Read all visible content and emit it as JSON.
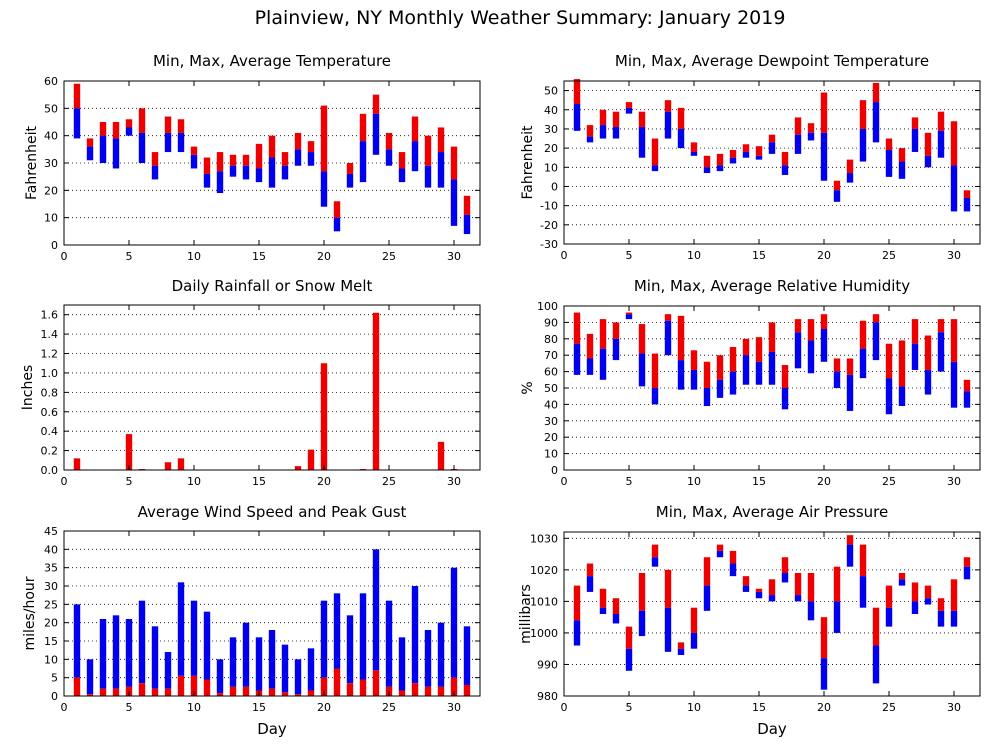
{
  "figure_title": "Plainview, NY Monthly Weather Summary: January 2019",
  "colors": {
    "red": "#ee0000",
    "blue": "#0000ee",
    "grid": "#000000"
  },
  "chart_data": [
    {
      "id": "temp",
      "type": "bar",
      "style": "floating-range",
      "title": "Min, Max, Average Temperature",
      "ylabel": "Fahrenheit",
      "xlabel": "",
      "xlim": [
        0,
        32
      ],
      "xticks": [
        0,
        5,
        10,
        15,
        20,
        25,
        30
      ],
      "ylim": [
        0,
        60
      ],
      "yticks": [
        0,
        10,
        20,
        30,
        40,
        50,
        60
      ],
      "grid": "horizontal-dotted",
      "days": [
        1,
        2,
        3,
        4,
        5,
        6,
        7,
        8,
        9,
        10,
        11,
        12,
        13,
        14,
        15,
        16,
        17,
        18,
        19,
        20,
        21,
        22,
        23,
        24,
        25,
        26,
        27,
        28,
        29,
        30,
        31
      ],
      "min": [
        39,
        31,
        30,
        28,
        40,
        30,
        24,
        34,
        34,
        28,
        21,
        19,
        25,
        24,
        23,
        21,
        24,
        29,
        29,
        14,
        5,
        21,
        23,
        33,
        29,
        23,
        27,
        21,
        21,
        7,
        4
      ],
      "avg": [
        50,
        36,
        40,
        39,
        43,
        41,
        29,
        41,
        41,
        33,
        26,
        27,
        29,
        29,
        28,
        32,
        29,
        35,
        34,
        27,
        10,
        26,
        38,
        48,
        35,
        28,
        38,
        29,
        34,
        24,
        11
      ],
      "max": [
        59,
        39,
        45,
        45,
        46,
        50,
        34,
        47,
        46,
        36,
        32,
        34,
        33,
        33,
        37,
        40,
        34,
        41,
        38,
        51,
        16,
        30,
        48,
        55,
        41,
        34,
        47,
        40,
        43,
        36,
        18
      ]
    },
    {
      "id": "dew",
      "type": "bar",
      "style": "floating-range",
      "title": "Min, Max, Average Dewpoint Temperature",
      "ylabel": "Fahrenheit",
      "xlabel": "",
      "xlim": [
        0,
        32
      ],
      "xticks": [
        0,
        5,
        10,
        15,
        20,
        25,
        30
      ],
      "ylim": [
        -30,
        55
      ],
      "yticks": [
        -30,
        -20,
        -10,
        0,
        10,
        20,
        30,
        40,
        50
      ],
      "grid": "horizontal-dotted",
      "days": [
        1,
        2,
        3,
        4,
        5,
        6,
        7,
        8,
        9,
        10,
        11,
        12,
        13,
        14,
        15,
        16,
        17,
        18,
        19,
        20,
        21,
        22,
        23,
        24,
        25,
        26,
        27,
        28,
        29,
        30,
        31
      ],
      "min": [
        29,
        23,
        25,
        25,
        38,
        15,
        8,
        25,
        20,
        16,
        7,
        8,
        12,
        15,
        14,
        17,
        6,
        17,
        24,
        3,
        -8,
        2,
        13,
        23,
        5,
        4,
        18,
        10,
        15,
        -13,
        -13
      ],
      "avg": [
        43,
        26,
        32,
        31,
        41,
        31,
        11,
        39,
        30,
        18,
        10,
        11,
        15,
        18,
        16,
        23,
        11,
        27,
        28,
        28,
        -2,
        7,
        30,
        44,
        19,
        13,
        30,
        16,
        29,
        11,
        -6
      ],
      "max": [
        56,
        32,
        40,
        39,
        44,
        39,
        25,
        45,
        41,
        23,
        16,
        17,
        19,
        22,
        21,
        27,
        18,
        36,
        33,
        49,
        3,
        14,
        45,
        54,
        25,
        20,
        36,
        28,
        39,
        34,
        -2
      ]
    },
    {
      "id": "rain",
      "type": "bar",
      "title": "Daily Rainfall or Snow Melt",
      "ylabel": "Inches",
      "xlabel": "",
      "xlim": [
        0,
        32
      ],
      "xticks": [
        0,
        5,
        10,
        15,
        20,
        25,
        30
      ],
      "ylim": [
        0,
        1.7
      ],
      "yticks": [
        0.0,
        0.2,
        0.4,
        0.6,
        0.8,
        1.0,
        1.2,
        1.4,
        1.6
      ],
      "ytick_labels": [
        "0.0",
        "0.2",
        "0.4",
        "0.6",
        "0.8",
        "1.0",
        "1.2",
        "1.4",
        "1.6"
      ],
      "grid": "horizontal-dotted",
      "days": [
        1,
        2,
        3,
        4,
        5,
        6,
        7,
        8,
        9,
        10,
        11,
        12,
        13,
        14,
        15,
        16,
        17,
        18,
        19,
        20,
        21,
        22,
        23,
        24,
        25,
        26,
        27,
        28,
        29,
        30,
        31
      ],
      "values": [
        0.12,
        0,
        0,
        0,
        0.37,
        0.01,
        0,
        0.08,
        0.12,
        0,
        0,
        0,
        0,
        0,
        0,
        0,
        0,
        0.04,
        0.21,
        1.1,
        0,
        0,
        0.01,
        1.62,
        0,
        0,
        0,
        0,
        0.29,
        0.01,
        0
      ]
    },
    {
      "id": "rh",
      "type": "bar",
      "style": "floating-range",
      "title": "Min, Max, Average Relative Humidity",
      "ylabel": "%",
      "xlabel": "",
      "xlim": [
        0,
        32
      ],
      "xticks": [
        0,
        5,
        10,
        15,
        20,
        25,
        30
      ],
      "ylim": [
        0,
        100
      ],
      "yticks": [
        0,
        10,
        20,
        30,
        40,
        50,
        60,
        70,
        80,
        90,
        100
      ],
      "grid": "horizontal-dotted",
      "days": [
        1,
        2,
        3,
        4,
        5,
        6,
        7,
        8,
        9,
        10,
        11,
        12,
        13,
        14,
        15,
        16,
        17,
        18,
        19,
        20,
        21,
        22,
        23,
        24,
        25,
        26,
        27,
        28,
        29,
        30,
        31
      ],
      "min": [
        58,
        58,
        55,
        67,
        92,
        51,
        40,
        70,
        49,
        49,
        39,
        44,
        46,
        52,
        52,
        52,
        37,
        62,
        59,
        66,
        50,
        36,
        56,
        67,
        34,
        39,
        61,
        46,
        60,
        38,
        38
      ],
      "avg": [
        77,
        68,
        74,
        80,
        95,
        71,
        50,
        91,
        67,
        61,
        50,
        55,
        60,
        70,
        66,
        72,
        50,
        84,
        79,
        86,
        60,
        58,
        74,
        90,
        56,
        51,
        77,
        61,
        84,
        66,
        48
      ],
      "max": [
        96,
        83,
        92,
        90,
        96,
        89,
        71,
        95,
        94,
        73,
        66,
        70,
        75,
        80,
        81,
        90,
        64,
        92,
        92,
        95,
        68,
        68,
        91,
        95,
        77,
        79,
        92,
        82,
        92,
        92,
        55
      ]
    },
    {
      "id": "wind",
      "type": "bar",
      "style": "stacked-overlay",
      "title": "Average Wind Speed and Peak Gust",
      "ylabel": "miles/hour",
      "xlabel": "Day",
      "xlim": [
        0,
        32
      ],
      "xticks": [
        0,
        5,
        10,
        15,
        20,
        25,
        30
      ],
      "ylim": [
        0,
        45
      ],
      "yticks": [
        0,
        5,
        10,
        15,
        20,
        25,
        30,
        35,
        40,
        45
      ],
      "grid": "horizontal-dotted",
      "days": [
        1,
        2,
        3,
        4,
        5,
        6,
        7,
        8,
        9,
        10,
        11,
        12,
        13,
        14,
        15,
        16,
        17,
        18,
        19,
        20,
        21,
        22,
        23,
        24,
        25,
        26,
        27,
        28,
        29,
        30,
        31
      ],
      "series": [
        {
          "name": "Average Wind Speed",
          "color": "red",
          "values": [
            5,
            0.5,
            2,
            2,
            2.5,
            3.5,
            2,
            2,
            5.5,
            5.5,
            4.5,
            0.8,
            2.5,
            2.5,
            1.5,
            2,
            1,
            0.5,
            1.5,
            5,
            7.5,
            3.5,
            4.5,
            7,
            2.5,
            1.5,
            3.5,
            2.5,
            2.5,
            5,
            3
          ]
        },
        {
          "name": "Peak Gust",
          "color": "blue",
          "values": [
            25,
            10,
            21,
            22,
            21,
            26,
            19,
            12,
            31,
            26,
            23,
            10,
            16,
            20,
            16,
            18,
            14,
            10,
            13,
            26,
            28,
            22,
            28,
            40,
            26,
            16,
            30,
            18,
            20,
            35,
            19
          ]
        }
      ]
    },
    {
      "id": "pressure",
      "type": "bar",
      "style": "floating-range",
      "title": "Min, Max, Average Air Pressure",
      "ylabel": "millibars",
      "xlabel": "Day",
      "xlim": [
        0,
        32
      ],
      "xticks": [
        0,
        5,
        10,
        15,
        20,
        25,
        30
      ],
      "ylim": [
        980,
        1032
      ],
      "yticks": [
        980,
        990,
        1000,
        1010,
        1020,
        1030
      ],
      "grid": "horizontal-dotted",
      "days": [
        1,
        2,
        3,
        4,
        5,
        6,
        7,
        8,
        9,
        10,
        11,
        12,
        13,
        14,
        15,
        16,
        17,
        18,
        19,
        20,
        21,
        22,
        23,
        24,
        25,
        26,
        27,
        28,
        29,
        30,
        31
      ],
      "min": [
        996,
        1013,
        1006,
        1003,
        988,
        999,
        1021,
        994,
        993,
        995,
        1007,
        1024,
        1018,
        1013,
        1011,
        1010,
        1016,
        1010,
        1004,
        982,
        1000,
        1021,
        1008,
        984,
        1002,
        1015,
        1006,
        1009,
        1002,
        1002,
        1017
      ],
      "avg": [
        1004,
        1018,
        1008,
        1006,
        995,
        1007,
        1024,
        1008,
        995,
        1000,
        1015,
        1026,
        1022,
        1015,
        1013,
        1012,
        1019,
        1012,
        1010,
        992,
        1010,
        1028,
        1018,
        996,
        1008,
        1017,
        1010,
        1011,
        1007,
        1007,
        1021
      ],
      "max": [
        1015,
        1022,
        1014,
        1011,
        1002,
        1019,
        1028,
        1020,
        997,
        1008,
        1024,
        1028,
        1026,
        1018,
        1014,
        1017,
        1024,
        1019,
        1019,
        1005,
        1021,
        1031,
        1028,
        1008,
        1015,
        1019,
        1016,
        1015,
        1011,
        1017,
        1024
      ]
    }
  ]
}
